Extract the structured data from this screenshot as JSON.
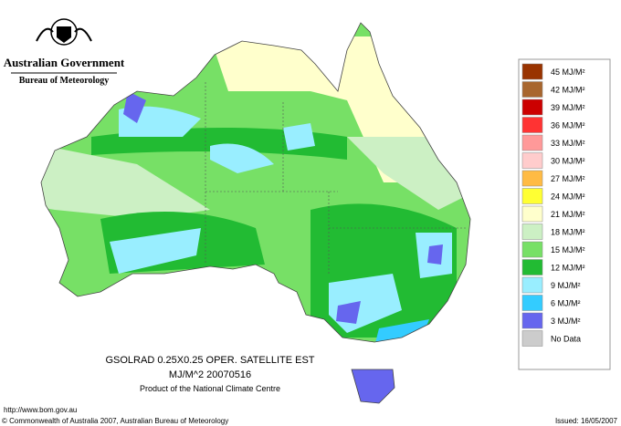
{
  "header": {
    "government": "Australian Government",
    "agency": "Bureau of Meteorology"
  },
  "map": {
    "caption_line1": "GSOLRAD   0.25X0.25 OPER. SATELLITE EST",
    "caption_line2": "MJ/M^2  20070516",
    "caption_line3": "Product of the National Climate Centre"
  },
  "legend": {
    "items": [
      {
        "label": "45 MJ/M²",
        "color": "#993300"
      },
      {
        "label": "42 MJ/M²",
        "color": "#a8662e"
      },
      {
        "label": "39 MJ/M²",
        "color": "#cc0000"
      },
      {
        "label": "36 MJ/M²",
        "color": "#ff3333"
      },
      {
        "label": "33 MJ/M²",
        "color": "#ff9999"
      },
      {
        "label": "30 MJ/M²",
        "color": "#ffcccc"
      },
      {
        "label": "27 MJ/M²",
        "color": "#ffbb44"
      },
      {
        "label": "24 MJ/M²",
        "color": "#ffff33"
      },
      {
        "label": "21 MJ/M²",
        "color": "#ffffcc"
      },
      {
        "label": "18 MJ/M²",
        "color": "#ccf0c4"
      },
      {
        "label": "15 MJ/M²",
        "color": "#77e066"
      },
      {
        "label": "12 MJ/M²",
        "color": "#22bb33"
      },
      {
        "label": "9 MJ/M²",
        "color": "#99eeff"
      },
      {
        "label": "6 MJ/M²",
        "color": "#33ccff"
      },
      {
        "label": "3 MJ/M²",
        "color": "#6666ee"
      },
      {
        "label": "No Data",
        "color": "#cccccc"
      }
    ]
  },
  "footer": {
    "url": "http://www.bom.gov.au",
    "copyright": "© Commonwealth of Australia 2007, Australian Bureau of Meteorology",
    "issued": "Issued: 16/05/2007"
  }
}
